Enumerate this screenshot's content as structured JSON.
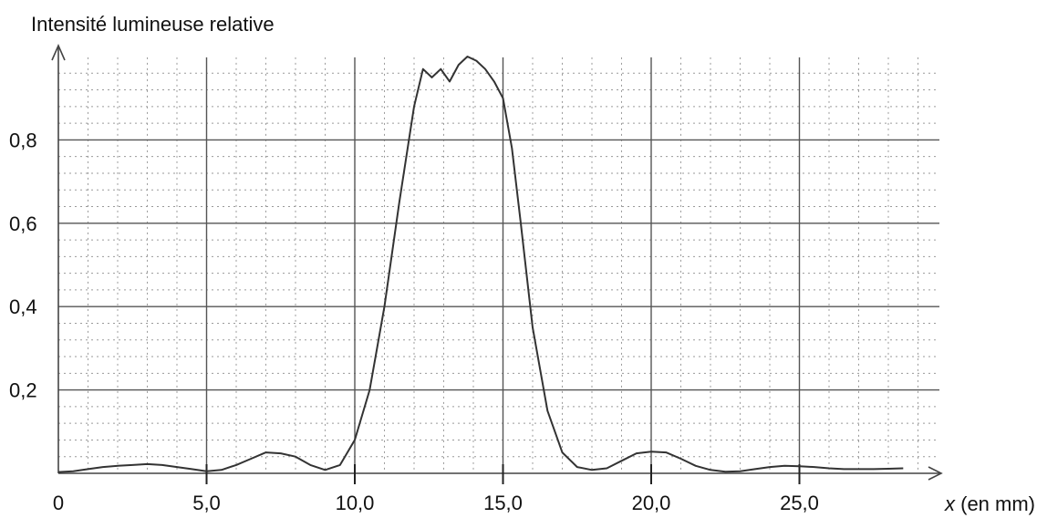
{
  "chart_data": {
    "type": "line",
    "title": "",
    "ylabel": "Intensité lumineuse relative",
    "xlabel": "x (en mm)",
    "xlabel_italic_part": "x",
    "xlabel_rest": " (en mm)",
    "xlim": [
      0,
      29.5
    ],
    "ylim": [
      0,
      1.02
    ],
    "grid": true,
    "legend": "none",
    "x_tick_labels": [
      "0",
      "5,0",
      "10,0",
      "15,0",
      "20,0",
      "25,0"
    ],
    "x_ticks": [
      0,
      5,
      10,
      15,
      20,
      25
    ],
    "y_tick_labels": [
      "0,2",
      "0,4",
      "0,6",
      "0,8"
    ],
    "y_ticks": [
      0.2,
      0.4,
      0.6,
      0.8
    ],
    "line_color": "#333333",
    "series": [
      {
        "x": [
          0,
          0.5,
          1.0,
          1.5,
          2.0,
          2.5,
          3.0,
          3.5,
          4.0,
          4.5,
          5.0,
          5.5,
          6.0,
          6.5,
          7.0,
          7.5,
          8.0,
          8.5,
          9.0,
          9.5,
          10.0,
          10.5,
          11.0,
          11.5,
          12.0,
          12.3,
          12.6,
          12.9,
          13.2,
          13.5,
          13.8,
          14.1,
          14.4,
          14.7,
          15.0,
          15.3,
          15.6,
          16.0,
          16.5,
          17.0,
          17.5,
          18.0,
          18.5,
          19.0,
          19.5,
          20.0,
          20.5,
          21.0,
          21.5,
          22.0,
          22.5,
          23.0,
          23.5,
          24.0,
          24.5,
          25.0,
          25.5,
          26.0,
          26.5,
          27.0,
          27.5,
          28.0,
          28.5
        ],
        "y": [
          0.003,
          0.005,
          0.01,
          0.015,
          0.018,
          0.02,
          0.022,
          0.02,
          0.015,
          0.01,
          0.005,
          0.008,
          0.02,
          0.035,
          0.05,
          0.048,
          0.04,
          0.02,
          0.008,
          0.02,
          0.08,
          0.2,
          0.4,
          0.65,
          0.88,
          0.97,
          0.95,
          0.97,
          0.94,
          0.98,
          1.0,
          0.99,
          0.97,
          0.94,
          0.9,
          0.78,
          0.6,
          0.35,
          0.15,
          0.05,
          0.015,
          0.008,
          0.012,
          0.03,
          0.048,
          0.052,
          0.05,
          0.035,
          0.018,
          0.008,
          0.004,
          0.005,
          0.01,
          0.015,
          0.018,
          0.017,
          0.015,
          0.012,
          0.01,
          0.01,
          0.01,
          0.011,
          0.012
        ]
      }
    ]
  }
}
